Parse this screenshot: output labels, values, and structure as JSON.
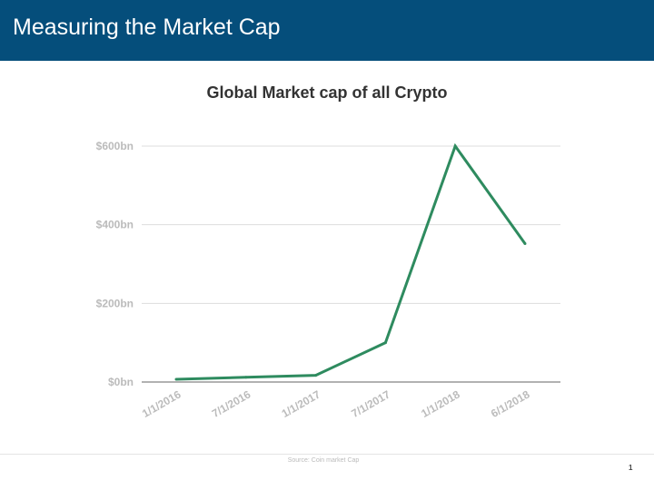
{
  "slide": {
    "header_title": "Measuring the Market Cap",
    "source": "Source: Coin market Cap",
    "page_number": "1"
  },
  "colors": {
    "header_bg": "#054e7b",
    "line": "#2e8b5f",
    "grid": "#dddddd",
    "axis": "#999999",
    "tick_label": "#bbbbbb"
  },
  "chart_data": {
    "type": "line",
    "title": "Global Market cap of all Crypto",
    "xlabel": "",
    "ylabel": "",
    "categories": [
      "1/1/2016",
      "7/1/2016",
      "1/1/2017",
      "7/1/2017",
      "1/1/2018",
      "6/1/2018"
    ],
    "series": [
      {
        "values": [
          7,
          12,
          17,
          100,
          600,
          352
        ]
      }
    ],
    "yticks": [
      0,
      200,
      400,
      600
    ],
    "ytick_labels": [
      "$0bn",
      "$200bn",
      "$400bn",
      "$600bn"
    ],
    "ylim": [
      0,
      600
    ],
    "grid": true,
    "legend": "none"
  }
}
